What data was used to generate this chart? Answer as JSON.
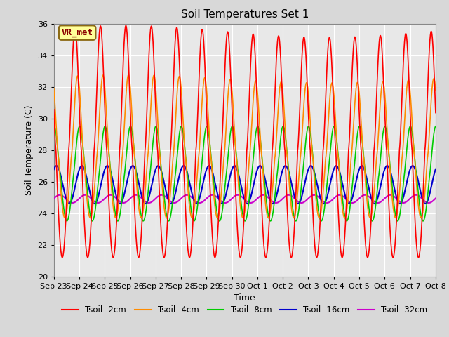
{
  "title": "Soil Temperatures Set 1",
  "xlabel": "Time",
  "ylabel": "Soil Temperature (C)",
  "ylim": [
    20,
    36
  ],
  "background_color": "#e8e8e8",
  "grid_color": "#ffffff",
  "annotation_text": "VR_met",
  "annotation_bg": "#ffff99",
  "annotation_border": "#8B6914",
  "annotation_text_color": "#8B0000",
  "x_tick_labels": [
    "Sep 23",
    "Sep 24",
    "Sep 25",
    "Sep 26",
    "Sep 27",
    "Sep 28",
    "Sep 29",
    "Sep 30",
    "Oct 1",
    "Oct 2",
    "Oct 3",
    "Oct 4",
    "Oct 5",
    "Oct 6",
    "Oct 7",
    "Oct 8"
  ],
  "series": {
    "Tsoil -2cm": {
      "color": "#ff0000",
      "lw": 1.2
    },
    "Tsoil -4cm": {
      "color": "#ff8c00",
      "lw": 1.2
    },
    "Tsoil -8cm": {
      "color": "#00cc00",
      "lw": 1.2
    },
    "Tsoil -16cm": {
      "color": "#0000cc",
      "lw": 1.5
    },
    "Tsoil -32cm": {
      "color": "#cc00cc",
      "lw": 1.5
    }
  }
}
